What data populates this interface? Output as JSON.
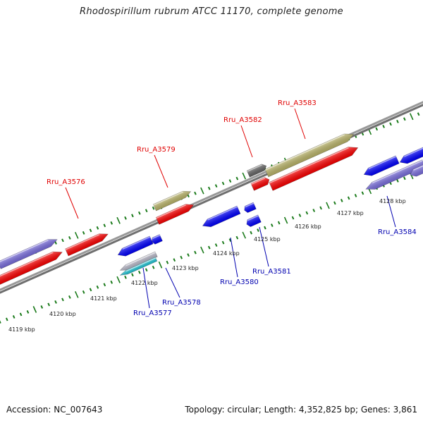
{
  "title": "Rhodospirillum rubrum ATCC 11170, complete genome",
  "footer": {
    "accession": "Accession: NC_007643",
    "stats": "Topology: circular; Length: 4,352,825 bp; Genes: 3,861"
  },
  "colors": {
    "forward_label": "#e00000",
    "reverse_label": "#0000b0",
    "backbone": "#888888",
    "ticks": "#1a7a1a",
    "gene_red": "#ff0000",
    "gene_blue": "#0000ff",
    "gene_purple": "#7b6fe0",
    "gene_olive": "#bdb76b",
    "gene_gray": "#666666",
    "gene_cyan": "#20c8d8"
  },
  "scale": {
    "unit": "kbp",
    "ticks": [
      {
        "label": "4119 kbp"
      },
      {
        "label": "4120 kbp"
      },
      {
        "label": "4121 kbp"
      },
      {
        "label": "4122 kbp"
      },
      {
        "label": "4123 kbp"
      },
      {
        "label": "4124 kbp"
      },
      {
        "label": "4125 kbp"
      },
      {
        "label": "4126 kbp"
      },
      {
        "label": "4127 kbp"
      },
      {
        "label": "4128 kbp"
      }
    ]
  },
  "labels": [
    {
      "name": "gene-label-rru-a3576",
      "text": "Rru_A3576",
      "strand": "forward"
    },
    {
      "name": "gene-label-rru-a3579",
      "text": "Rru_A3579",
      "strand": "forward"
    },
    {
      "name": "gene-label-rru-a3582",
      "text": "Rru_A3582",
      "strand": "forward"
    },
    {
      "name": "gene-label-rru-a3583",
      "text": "Rru_A3583",
      "strand": "forward"
    },
    {
      "name": "gene-label-rru-a3577",
      "text": "Rru_A3577",
      "strand": "reverse"
    },
    {
      "name": "gene-label-rru-a3578",
      "text": "Rru_A3578",
      "strand": "reverse"
    },
    {
      "name": "gene-label-rru-a3580",
      "text": "Rru_A3580",
      "strand": "reverse"
    },
    {
      "name": "gene-label-rru-a3581",
      "text": "Rru_A3581",
      "strand": "reverse"
    },
    {
      "name": "gene-label-rru-a3584",
      "text": "Rru_A3584",
      "strand": "reverse"
    }
  ]
}
